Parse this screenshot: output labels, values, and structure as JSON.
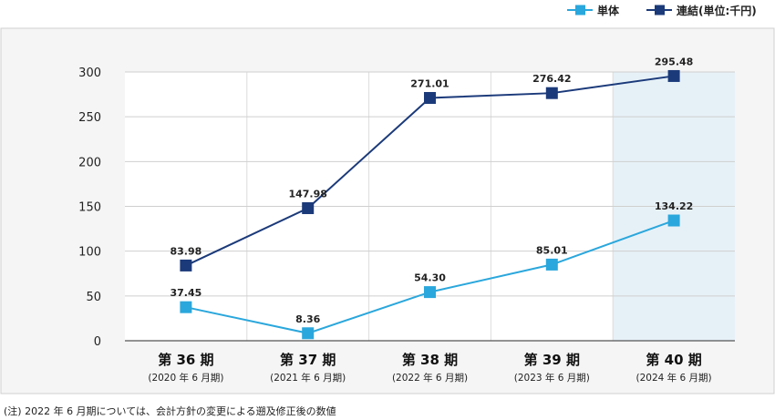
{
  "chart_data": {
    "type": "line",
    "categories": [
      "第 36 期",
      "第 37 期",
      "第 38 期",
      "第 39 期",
      "第 40 期"
    ],
    "category_sublabels": [
      "(2020 年 6 月期)",
      "(2021 年 6 月期)",
      "(2022 年 6 月期)",
      "(2023 年 6 月期)",
      "(2024 年 6 月期)"
    ],
    "series": [
      {
        "name": "単体",
        "values": [
          37.45,
          8.36,
          54.3,
          85.01,
          134.22
        ],
        "labels": [
          "37.45",
          "8.36",
          "54.30",
          "85.01",
          "134.22"
        ],
        "color": "#2aa7dc"
      },
      {
        "name": "連結(単位:千円)",
        "values": [
          83.98,
          147.98,
          271.01,
          276.42,
          295.48
        ],
        "labels": [
          "83.98",
          "147.98",
          "271.01",
          "276.42",
          "295.48"
        ],
        "color": "#1b3a7a"
      }
    ],
    "ylim": [
      0,
      300
    ],
    "yticks": [
      0,
      50,
      100,
      150,
      200,
      250,
      300
    ],
    "grid": true,
    "highlight_category": "第 40 期",
    "highlight_color": "#e6f1f7",
    "panel_color": "#f5f5f5",
    "legend_position": "top-right"
  },
  "footnote": "(注) 2022 年 6 月期については、会計方針の変更による遡及修正後の数値"
}
